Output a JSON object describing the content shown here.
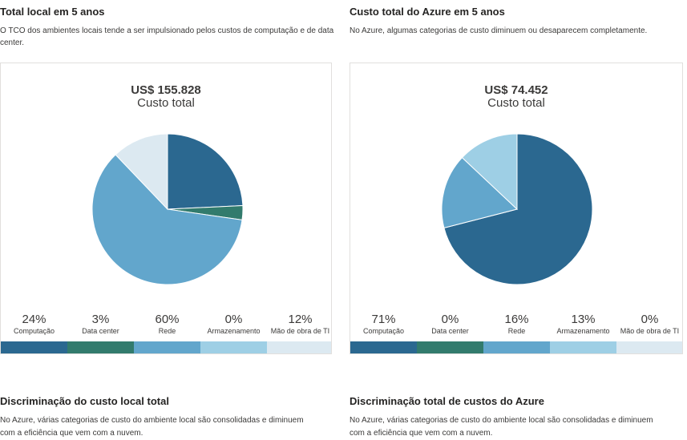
{
  "colors": {
    "compute": "#2b6890",
    "datacenter": "#327b6d",
    "network": "#62a6cc",
    "storage": "#9ecfe5",
    "it_labor": "#dce9f1"
  },
  "onprem": {
    "title": "Total local em 5 anos",
    "description": "O TCO dos ambientes locais tende a ser impulsionado pelos custos de computação e de data center.",
    "total_amount": "US$ 155.828",
    "total_label": "Custo total",
    "legend": [
      {
        "pct": "24%",
        "name": "Computação"
      },
      {
        "pct": "3%",
        "name": "Data center"
      },
      {
        "pct": "60%",
        "name": "Rede"
      },
      {
        "pct": "0%",
        "name": "Armazenamento"
      },
      {
        "pct": "12%",
        "name": "Mão de obra de TI"
      }
    ],
    "breakdown_title": "Discriminação do custo local total",
    "breakdown_desc": "No Azure, várias categorias de custo do ambiente local são consolidadas e diminuem com a eficiência que vem com a nuvem."
  },
  "azure": {
    "title": "Custo total do Azure em 5 anos",
    "description": "No Azure, algumas categorias de custo diminuem ou desaparecem completamente.",
    "total_amount": "US$ 74.452",
    "total_label": "Custo total",
    "legend": [
      {
        "pct": "71%",
        "name": "Computação"
      },
      {
        "pct": "0%",
        "name": "Data center"
      },
      {
        "pct": "16%",
        "name": "Rede"
      },
      {
        "pct": "13%",
        "name": "Armazenamento"
      },
      {
        "pct": "0%",
        "name": "Mão de obra de TI"
      }
    ],
    "breakdown_title": "Discriminação total de custos do Azure",
    "breakdown_desc": "No Azure, várias categorias de custo do ambiente local são consolidadas e diminuem com a eficiência que vem com a nuvem."
  },
  "chart_data": [
    {
      "type": "pie",
      "categories": [
        "Computação",
        "Data center",
        "Rede",
        "Armazenamento",
        "Mão de obra de TI"
      ],
      "values": [
        24,
        3,
        60,
        0,
        12
      ]
    },
    {
      "type": "pie",
      "categories": [
        "Computação",
        "Data center",
        "Rede",
        "Armazenamento",
        "Mão de obra de TI"
      ],
      "values": [
        71,
        0,
        16,
        13,
        0
      ]
    }
  ]
}
